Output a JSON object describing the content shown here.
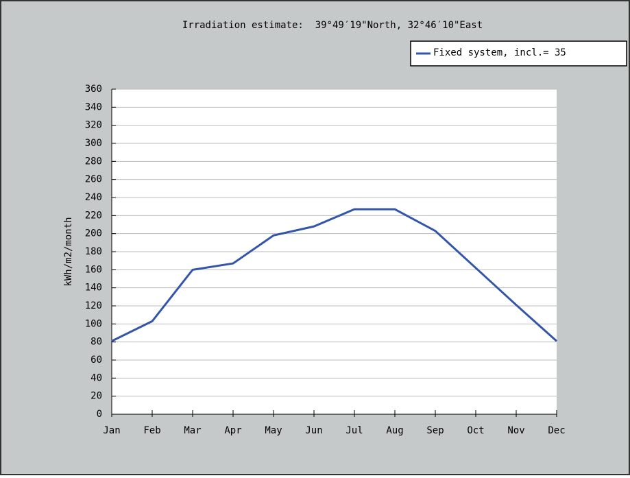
{
  "chart_data": {
    "type": "line",
    "title": "Irradiation estimate:  39°49′19\"North, 32°46′10\"East",
    "y_label": "kWh/m2/month",
    "categories": [
      "Jan",
      "Feb",
      "Mar",
      "Apr",
      "May",
      "Jun",
      "Jul",
      "Aug",
      "Sep",
      "Oct",
      "Nov",
      "Dec"
    ],
    "series": [
      {
        "name": "Fixed system, incl.= 35",
        "color": "#3355aa",
        "values": [
          81,
          103,
          160,
          167,
          198,
          208,
          227,
          227,
          203,
          162,
          121,
          81
        ]
      }
    ],
    "ylim": [
      0,
      360
    ],
    "yticks": [
      0,
      20,
      40,
      60,
      80,
      100,
      120,
      140,
      160,
      180,
      200,
      220,
      240,
      260,
      280,
      300,
      320,
      340,
      360
    ],
    "grid": true,
    "legend": "top-right"
  }
}
